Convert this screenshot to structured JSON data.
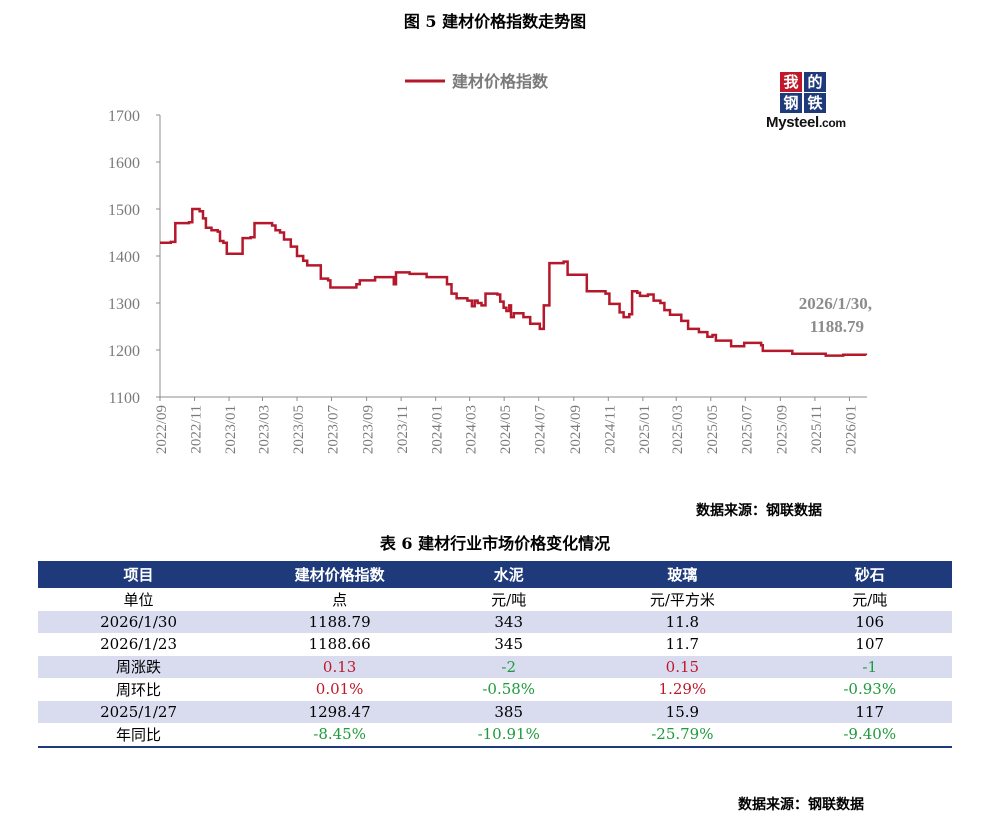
{
  "figure": {
    "title": "图 5  建材价格指数走势图",
    "source": "数据来源：钢联数据",
    "logo": {
      "cn": [
        "我",
        "的",
        "钢",
        "铁"
      ],
      "en_main": "Mysteel",
      "en_suffix": ".com"
    }
  },
  "chart_data": {
    "type": "line",
    "title": "",
    "xlabel": "",
    "ylabel": "",
    "ylim": [
      1100,
      1700
    ],
    "yticks": [
      1700,
      1600,
      1500,
      1400,
      1300,
      1200,
      1100
    ],
    "x_tick_labels": [
      "2022/09",
      "2022/11",
      "2023/01",
      "2023/03",
      "2023/05",
      "2023/07",
      "2023/09",
      "2023/11",
      "2024/01",
      "2024/03",
      "2024/05",
      "2024/07",
      "2024/09",
      "2024/11",
      "2025/01",
      "2025/03",
      "2025/05",
      "2025/07",
      "2025/09",
      "2025/11",
      "2026/01"
    ],
    "legend": "top-center",
    "grid": false,
    "color": "#b5182a",
    "series": [
      {
        "name": "建材价格指数",
        "points": [
          [
            "2022-09-01",
            1428
          ],
          [
            "2022-09-20",
            1430
          ],
          [
            "2022-09-28",
            1470
          ],
          [
            "2022-10-10",
            1470
          ],
          [
            "2022-10-22",
            1472
          ],
          [
            "2022-10-28",
            1500
          ],
          [
            "2022-11-10",
            1495
          ],
          [
            "2022-11-16",
            1480
          ],
          [
            "2022-11-21",
            1460
          ],
          [
            "2022-12-01",
            1455
          ],
          [
            "2022-12-12",
            1452
          ],
          [
            "2022-12-16",
            1432
          ],
          [
            "2022-12-22",
            1428
          ],
          [
            "2022-12-28",
            1405
          ],
          [
            "2023-01-20",
            1405
          ],
          [
            "2023-01-25",
            1438
          ],
          [
            "2023-02-08",
            1440
          ],
          [
            "2023-02-15",
            1470
          ],
          [
            "2023-03-10",
            1470
          ],
          [
            "2023-03-18",
            1465
          ],
          [
            "2023-03-24",
            1455
          ],
          [
            "2023-04-01",
            1450
          ],
          [
            "2023-04-08",
            1435
          ],
          [
            "2023-04-20",
            1420
          ],
          [
            "2023-05-01",
            1400
          ],
          [
            "2023-05-12",
            1390
          ],
          [
            "2023-05-19",
            1380
          ],
          [
            "2023-06-07",
            1380
          ],
          [
            "2023-06-12",
            1352
          ],
          [
            "2023-06-25",
            1348
          ],
          [
            "2023-06-29",
            1333
          ],
          [
            "2023-08-08",
            1333
          ],
          [
            "2023-08-14",
            1340
          ],
          [
            "2023-08-20",
            1348
          ],
          [
            "2023-09-10",
            1348
          ],
          [
            "2023-09-16",
            1355
          ],
          [
            "2023-10-16",
            1355
          ],
          [
            "2023-10-19",
            1340
          ],
          [
            "2023-10-23",
            1365
          ],
          [
            "2023-11-10",
            1365
          ],
          [
            "2023-11-16",
            1362
          ],
          [
            "2023-12-10",
            1362
          ],
          [
            "2023-12-16",
            1355
          ],
          [
            "2024-01-16",
            1355
          ],
          [
            "2024-01-21",
            1340
          ],
          [
            "2024-01-29",
            1320
          ],
          [
            "2024-02-07",
            1310
          ],
          [
            "2024-02-20",
            1310
          ],
          [
            "2024-02-26",
            1305
          ],
          [
            "2024-03-05",
            1293
          ],
          [
            "2024-03-10",
            1305
          ],
          [
            "2024-03-15",
            1300
          ],
          [
            "2024-03-22",
            1295
          ],
          [
            "2024-03-29",
            1320
          ],
          [
            "2024-04-19",
            1318
          ],
          [
            "2024-04-24",
            1303
          ],
          [
            "2024-04-30",
            1290
          ],
          [
            "2024-05-05",
            1283
          ],
          [
            "2024-05-10",
            1295
          ],
          [
            "2024-05-13",
            1270
          ],
          [
            "2024-05-18",
            1278
          ],
          [
            "2024-05-27",
            1278
          ],
          [
            "2024-06-04",
            1270
          ],
          [
            "2024-06-16",
            1256
          ],
          [
            "2024-06-29",
            1256
          ],
          [
            "2024-07-03",
            1245
          ],
          [
            "2024-07-10",
            1295
          ],
          [
            "2024-07-20",
            1385
          ],
          [
            "2024-08-14",
            1388
          ],
          [
            "2024-08-21",
            1360
          ],
          [
            "2024-09-20",
            1360
          ],
          [
            "2024-09-24",
            1325
          ],
          [
            "2024-10-22",
            1325
          ],
          [
            "2024-10-27",
            1320
          ],
          [
            "2024-11-03",
            1298
          ],
          [
            "2024-11-15",
            1298
          ],
          [
            "2024-11-21",
            1280
          ],
          [
            "2024-11-28",
            1270
          ],
          [
            "2024-12-03",
            1270
          ],
          [
            "2024-12-08",
            1276
          ],
          [
            "2024-12-13",
            1325
          ],
          [
            "2024-12-22",
            1322
          ],
          [
            "2024-12-27",
            1315
          ],
          [
            "2025-01-05",
            1315
          ],
          [
            "2025-01-10",
            1318
          ],
          [
            "2025-01-20",
            1305
          ],
          [
            "2025-02-01",
            1300
          ],
          [
            "2025-02-08",
            1285
          ],
          [
            "2025-02-18",
            1275
          ],
          [
            "2025-03-03",
            1275
          ],
          [
            "2025-03-10",
            1262
          ],
          [
            "2025-03-18",
            1262
          ],
          [
            "2025-03-22",
            1245
          ],
          [
            "2025-04-05",
            1245
          ],
          [
            "2025-04-10",
            1238
          ],
          [
            "2025-04-21",
            1238
          ],
          [
            "2025-04-25",
            1228
          ],
          [
            "2025-05-04",
            1232
          ],
          [
            "2025-05-10",
            1220
          ],
          [
            "2025-06-01",
            1220
          ],
          [
            "2025-06-06",
            1208
          ],
          [
            "2025-06-26",
            1208
          ],
          [
            "2025-06-29",
            1215
          ],
          [
            "2025-07-23",
            1215
          ],
          [
            "2025-07-29",
            1210
          ],
          [
            "2025-08-01",
            1198
          ],
          [
            "2025-09-15",
            1198
          ],
          [
            "2025-09-22",
            1192
          ],
          [
            "2025-11-16",
            1192
          ],
          [
            "2025-11-20",
            1188
          ],
          [
            "2025-12-15",
            1188
          ],
          [
            "2025-12-21",
            1190
          ],
          [
            "2026-01-30",
            1188.79
          ]
        ]
      }
    ],
    "annotation": {
      "date": "2026/1/30,",
      "value": "1188.79"
    }
  },
  "table": {
    "title": "表 6 建材行业市场价格变化情况",
    "source": "数据来源：钢联数据",
    "headers": [
      "项目",
      "建材价格指数",
      "水泥",
      "玻璃",
      "砂石"
    ],
    "rows": [
      {
        "cells": [
          "单位",
          "点",
          "元/吨",
          "元/平方米",
          "元/吨"
        ],
        "shade": false,
        "tones": [
          "",
          "",
          "",
          "",
          ""
        ]
      },
      {
        "cells": [
          "2026/1/30",
          "1188.79",
          "343",
          "11.8",
          "106"
        ],
        "shade": true,
        "tones": [
          "",
          "",
          "",
          "",
          ""
        ]
      },
      {
        "cells": [
          "2026/1/23",
          "1188.66",
          "345",
          "11.7",
          "107"
        ],
        "shade": false,
        "tones": [
          "",
          "",
          "",
          "",
          ""
        ]
      },
      {
        "cells": [
          "周涨跌",
          "0.13",
          "-2",
          "0.15",
          "-1"
        ],
        "shade": true,
        "tones": [
          "",
          "up",
          "down",
          "up",
          "down"
        ]
      },
      {
        "cells": [
          "周环比",
          "0.01%",
          "-0.58%",
          "1.29%",
          "-0.93%"
        ],
        "shade": false,
        "tones": [
          "",
          "up",
          "down",
          "up",
          "down"
        ]
      },
      {
        "cells": [
          "2025/1/27",
          "1298.47",
          "385",
          "15.9",
          "117"
        ],
        "shade": true,
        "tones": [
          "",
          "",
          "",
          "",
          ""
        ]
      },
      {
        "cells": [
          "年同比",
          "-8.45%",
          "-10.91%",
          "-25.79%",
          "-9.40%"
        ],
        "shade": false,
        "tones": [
          "",
          "down",
          "down",
          "down",
          "down"
        ]
      }
    ]
  }
}
